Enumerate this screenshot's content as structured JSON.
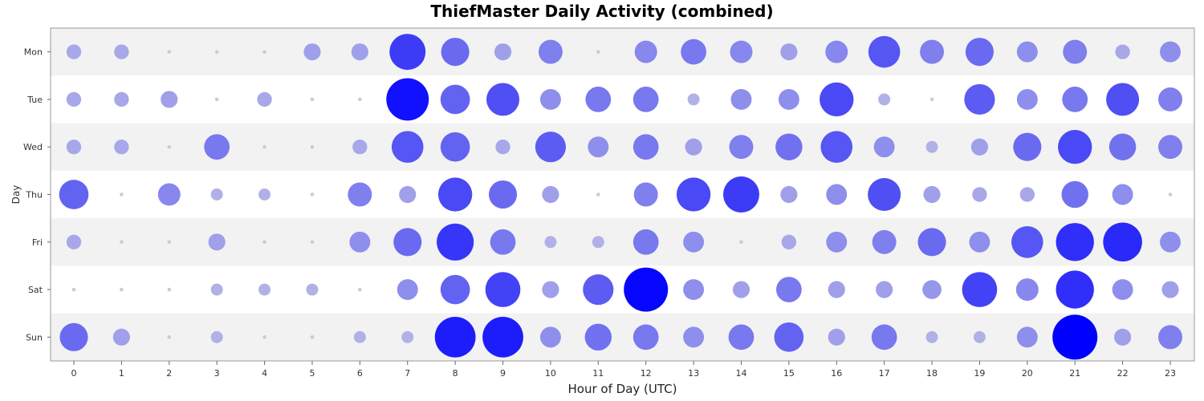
{
  "chart_data": {
    "type": "bubble",
    "title": "ThiefMaster Daily Activity (combined)",
    "xlabel": "Hour of Day (UTC)",
    "ylabel": "Day",
    "x": [
      "0",
      "1",
      "2",
      "3",
      "4",
      "5",
      "6",
      "7",
      "8",
      "9",
      "10",
      "11",
      "12",
      "13",
      "14",
      "15",
      "16",
      "17",
      "18",
      "19",
      "20",
      "21",
      "22",
      "23"
    ],
    "y": [
      "Mon",
      "Tue",
      "Wed",
      "Thu",
      "Fri",
      "Sat",
      "Sun"
    ],
    "values": [
      [
        3,
        3,
        0,
        0,
        0,
        4,
        4,
        18,
        11,
        4,
        8,
        0,
        7,
        9,
        7,
        4,
        7,
        14,
        8,
        11,
        6,
        8,
        3,
        6
      ],
      [
        3,
        3,
        4,
        0,
        3,
        0,
        0,
        25,
        12,
        15,
        6,
        9,
        9,
        2,
        6,
        6,
        16,
        2,
        0,
        13,
        6,
        9,
        15,
        8
      ],
      [
        3,
        3,
        0,
        9,
        0,
        0,
        3,
        14,
        12,
        3,
        13,
        6,
        9,
        4,
        8,
        10,
        14,
        6,
        2,
        4,
        11,
        16,
        10,
        8
      ],
      [
        12,
        0,
        7,
        2,
        2,
        0,
        8,
        4,
        16,
        11,
        4,
        0,
        8,
        16,
        18,
        4,
        6,
        15,
        4,
        3,
        3,
        10,
        6,
        0
      ],
      [
        3,
        0,
        0,
        4,
        0,
        0,
        6,
        11,
        19,
        9,
        2,
        2,
        9,
        6,
        0,
        3,
        6,
        8,
        11,
        6,
        14,
        20,
        21,
        6
      ],
      [
        0,
        0,
        0,
        2,
        2,
        2,
        0,
        6,
        12,
        17,
        4,
        13,
        27,
        6,
        4,
        9,
        4,
        4,
        5,
        17,
        7,
        20,
        6,
        4
      ],
      [
        11,
        4,
        0,
        2,
        0,
        0,
        2,
        2,
        23,
        23,
        6,
        10,
        9,
        6,
        9,
        12,
        4,
        9,
        2,
        2,
        6,
        28,
        4,
        8
      ]
    ],
    "grid": true,
    "row_banding": true,
    "color_min": "#c9c9e4",
    "color_max": "#0000ff"
  }
}
